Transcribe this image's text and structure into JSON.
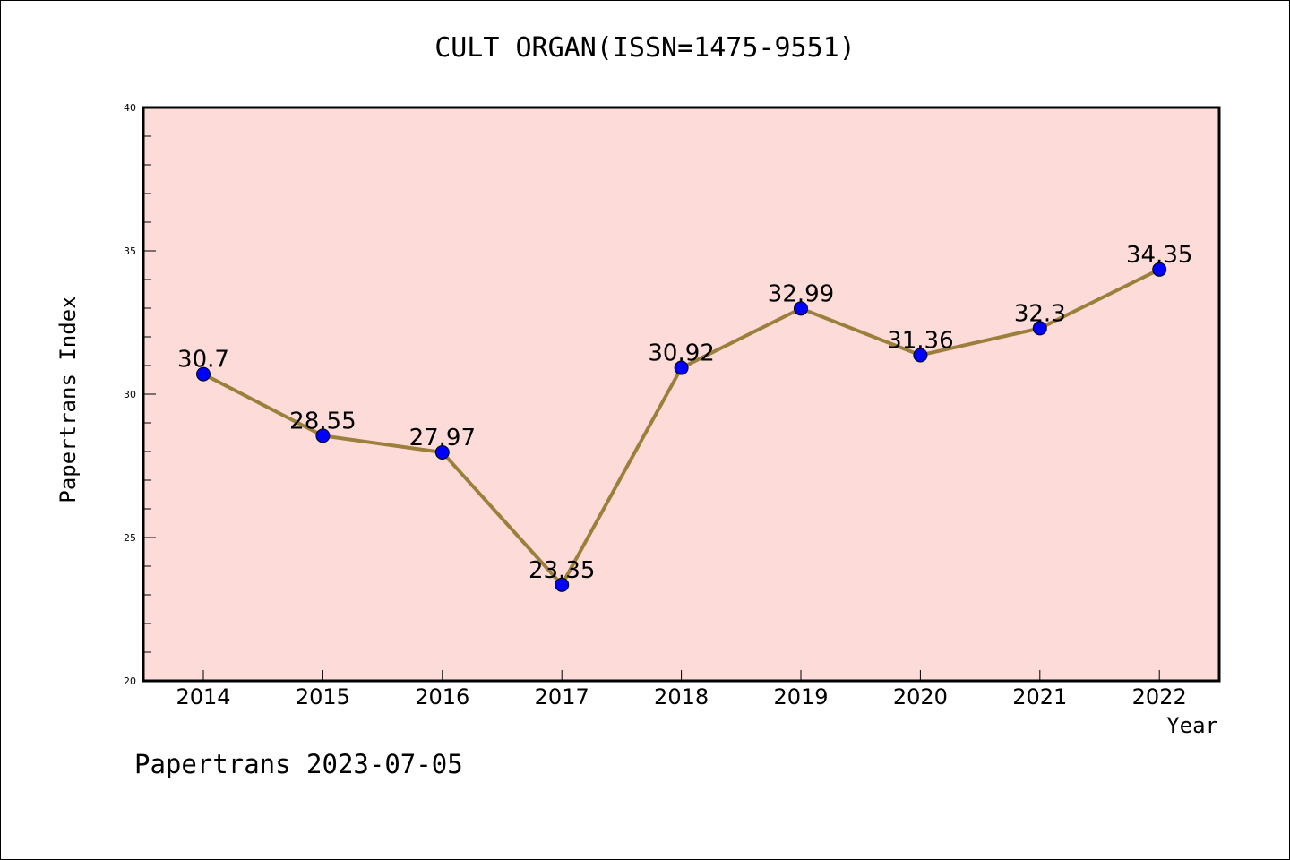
{
  "chart_data": {
    "type": "line",
    "title": "CULT ORGAN(ISSN=1475-9551)",
    "xlabel": "Year",
    "ylabel": "Papertrans Index",
    "categories": [
      "2014",
      "2015",
      "2016",
      "2017",
      "2018",
      "2019",
      "2020",
      "2021",
      "2022"
    ],
    "series": [
      {
        "values": [
          30.7,
          28.55,
          27.97,
          23.35,
          30.92,
          32.99,
          31.36,
          32.3,
          34.35
        ]
      }
    ],
    "data_labels": [
      "30.7",
      "28.55",
      "27.97",
      "23.35",
      "30.92",
      "32.99",
      "31.36",
      "32.3",
      "34.35"
    ],
    "ylim": [
      20,
      40
    ],
    "yticks": [
      20,
      25,
      30,
      35,
      40
    ],
    "grid": false,
    "colors": {
      "background": "#fddbd8",
      "line": "#9b7f3a",
      "marker": "#0000ff"
    }
  },
  "footer": "Papertrans 2023-07-05"
}
